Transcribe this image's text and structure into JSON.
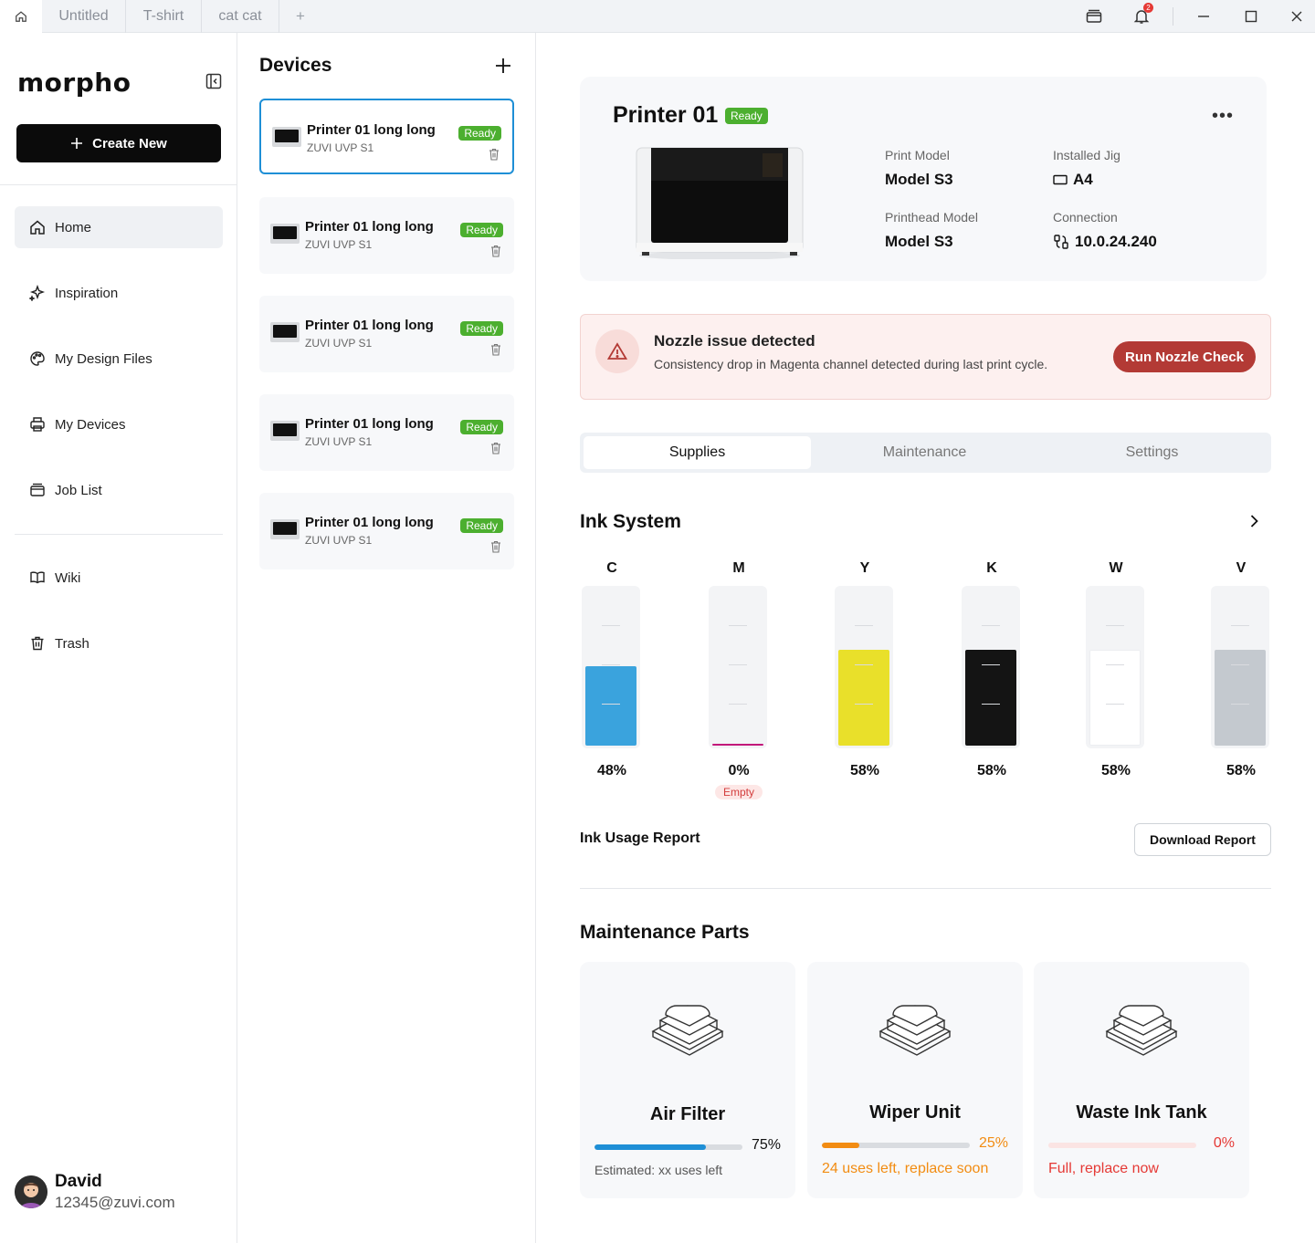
{
  "tabbar": {
    "tabs": [
      "Untitled",
      "T-shirt",
      "cat cat"
    ],
    "add_label": "+",
    "notification_count": "2"
  },
  "sidebar": {
    "logo": "morpho",
    "create_label": "Create New",
    "nav": [
      {
        "label": "Home",
        "icon": "home-icon",
        "active": true
      },
      {
        "label": "Inspiration",
        "icon": "sparkle-icon"
      },
      {
        "label": "My Design Files",
        "icon": "palette-icon"
      },
      {
        "label": "My Devices",
        "icon": "printer-icon"
      },
      {
        "label": "Job List",
        "icon": "tray-icon"
      },
      {
        "label": "Wiki",
        "icon": "book-icon"
      },
      {
        "label": "Trash",
        "icon": "trash-icon"
      }
    ],
    "user": {
      "name": "David",
      "email": "12345@zuvi.com"
    }
  },
  "devices": {
    "title": "Devices",
    "items": [
      {
        "name": "Printer 01 long long",
        "model": "ZUVI UVP S1",
        "status": "Ready",
        "selected": true
      },
      {
        "name": "Printer 01 long long",
        "model": "ZUVI UVP S1",
        "status": "Ready"
      },
      {
        "name": "Printer 01 long long",
        "model": "ZUVI UVP S1",
        "status": "Ready"
      },
      {
        "name": "Printer 01 long long",
        "model": "ZUVI UVP S1",
        "status": "Ready"
      },
      {
        "name": "Printer 01 long long",
        "model": "ZUVI UVP S1",
        "status": "Ready"
      }
    ]
  },
  "printer": {
    "name": "Printer 01",
    "status": "Ready",
    "more": "•••",
    "specs": {
      "print_model_label": "Print Model",
      "print_model": "Model S3",
      "jig_label": "Installed Jig",
      "jig": "A4",
      "printhead_label": "Printhead Model",
      "printhead": "Model S3",
      "connection_label": "Connection",
      "connection": "10.0.24.240"
    }
  },
  "alert": {
    "title": "Nozzle issue detected",
    "description": "Consistency drop in Magenta channel detected during last print cycle.",
    "action": "Run Nozzle Check"
  },
  "tabs": [
    {
      "label": "Supplies",
      "active": true
    },
    {
      "label": "Maintenance"
    },
    {
      "label": "Settings"
    }
  ],
  "ink": {
    "title": "Ink System",
    "channels": [
      {
        "letter": "C",
        "level": 48,
        "pct": "48%",
        "color": "#3aa3dd"
      },
      {
        "letter": "M",
        "level": 0,
        "pct": "0%",
        "color": "#c2187a",
        "status": "Empty"
      },
      {
        "letter": "Y",
        "level": 58,
        "pct": "58%",
        "color": "#e9e02a"
      },
      {
        "letter": "K",
        "level": 58,
        "pct": "58%",
        "color": "#141414"
      },
      {
        "letter": "W",
        "level": 58,
        "pct": "58%",
        "color": "#ffffff"
      },
      {
        "letter": "V",
        "level": 58,
        "pct": "58%",
        "color": "#c4c9cf"
      }
    ],
    "usage_label": "Ink Usage Report",
    "download_label": "Download Report"
  },
  "maintenance": {
    "title": "Maintenance Parts",
    "parts": [
      {
        "name": "Air Filter",
        "level": 0.75,
        "pct": "75%",
        "note": "Estimated: xx uses left",
        "color": "#1e8fd6",
        "text_color": "#111",
        "note_color": "#555"
      },
      {
        "name": "Wiper Unit",
        "level": 0.25,
        "pct": "25%",
        "note": "24 uses left, replace soon",
        "color": "#f28c12",
        "text_color": "#f28c12",
        "note_color": "#f28c12"
      },
      {
        "name": "Waste Ink Tank",
        "level": 0,
        "pct": "0%",
        "note": "Full, replace now",
        "color": "#e53935",
        "text_color": "#e53935",
        "note_color": "#e53935"
      }
    ]
  }
}
